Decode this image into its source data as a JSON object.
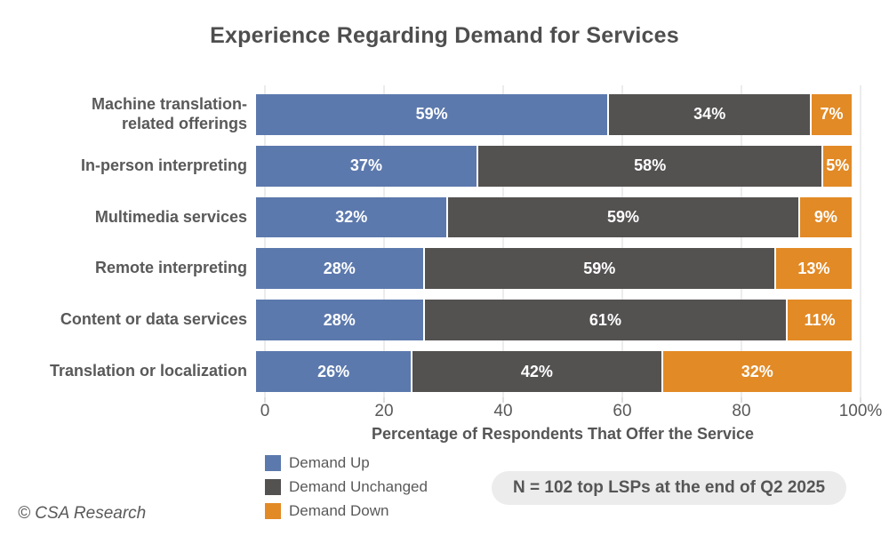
{
  "title": "Experience Regarding Demand for Services",
  "chart_data": {
    "type": "bar",
    "orientation": "horizontal",
    "stacked": true,
    "title": "Experience Regarding Demand for Services",
    "xlabel": "Percentage of Respondents That Offer the Service",
    "xlim": [
      0,
      100
    ],
    "grid": true,
    "legend_position": "bottom-left",
    "value_label_suffix": "%",
    "categories": [
      "Machine translation-\nrelated offerings",
      "In-person interpreting",
      "Multimedia services",
      "Remote interpreting",
      "Content or data services",
      "Translation or localization"
    ],
    "series": [
      {
        "name": "Demand Up",
        "color": "#5c79ad",
        "values": [
          59,
          37,
          32,
          28,
          28,
          26
        ]
      },
      {
        "name": "Demand Unchanged",
        "color": "#545151",
        "values": [
          34,
          58,
          59,
          59,
          61,
          42
        ]
      },
      {
        "name": "Demand Down",
        "color": "#e28a26",
        "values": [
          7,
          5,
          9,
          13,
          11,
          32
        ]
      }
    ],
    "xticks": [
      {
        "value": 0,
        "label": "0"
      },
      {
        "value": 20,
        "label": "20"
      },
      {
        "value": 40,
        "label": "40"
      },
      {
        "value": 60,
        "label": "60"
      },
      {
        "value": 80,
        "label": "80"
      },
      {
        "value": 100,
        "label": "100%"
      }
    ]
  },
  "note": "N = 102 top LSPs at the end of Q2 2025",
  "footer": "© CSA Research",
  "colors": {
    "gridline": "#d9d9d9",
    "tick": "#bfbfbf",
    "text": "#595959",
    "note_bg": "#ececec"
  }
}
